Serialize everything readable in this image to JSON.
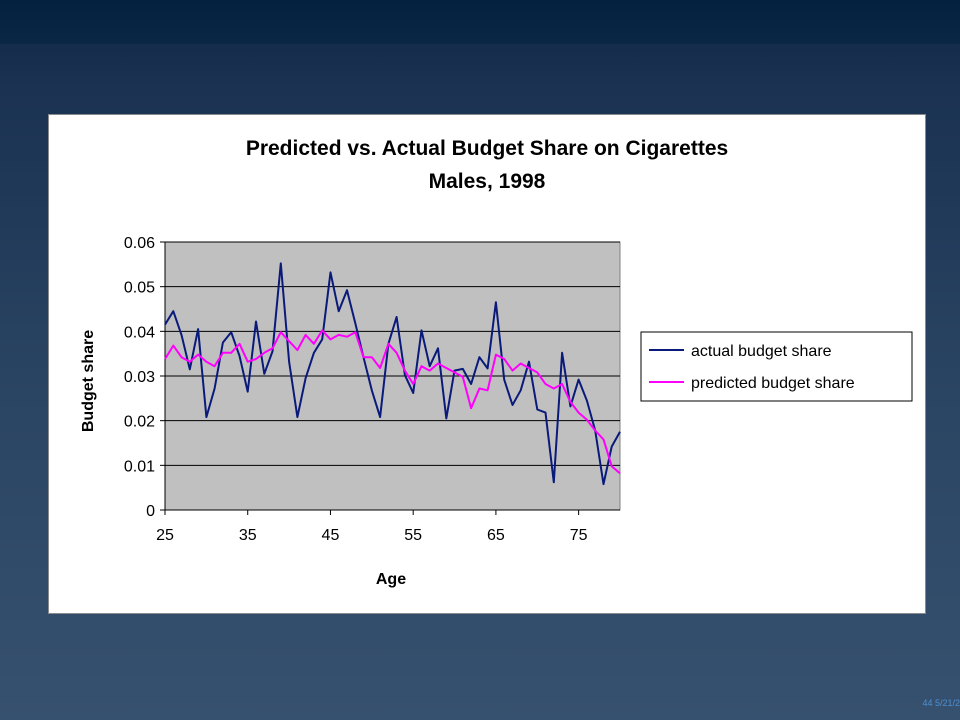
{
  "slide": {
    "footer": "44 5/21/2"
  },
  "colors": {
    "actual": "#0a1a7a",
    "predicted": "#ff00ff",
    "plot_bg": "#c0c0c0",
    "background": "#2a4563"
  },
  "chart_data": {
    "type": "line",
    "title": "Predicted vs. Actual Budget Share on Cigarettes",
    "subtitle": "Males, 1998",
    "xlabel": "Age",
    "ylabel": "Budget share",
    "xlim": [
      25,
      80
    ],
    "ylim": [
      0,
      0.06
    ],
    "xticks": [
      25,
      35,
      45,
      55,
      65,
      75
    ],
    "xtick_labels": [
      "25",
      "35",
      "45",
      "55",
      "65",
      "75"
    ],
    "yticks": [
      0,
      0.01,
      0.02,
      0.03,
      0.04,
      0.05,
      0.06
    ],
    "ytick_labels": [
      "0",
      "0.01",
      "0.02",
      "0.03",
      "0.04",
      "0.05",
      "0.06"
    ],
    "grid": true,
    "legend_position": "right",
    "x": [
      25,
      26,
      27,
      28,
      29,
      30,
      31,
      32,
      33,
      34,
      35,
      36,
      37,
      38,
      39,
      40,
      41,
      42,
      43,
      44,
      45,
      46,
      47,
      48,
      49,
      50,
      51,
      52,
      53,
      54,
      55,
      56,
      57,
      58,
      59,
      60,
      61,
      62,
      63,
      64,
      65,
      66,
      67,
      68,
      69,
      70,
      71,
      72,
      73,
      74,
      75,
      76,
      77,
      78,
      79,
      80
    ],
    "series": [
      {
        "name": "actual budget share",
        "color": "#0a1a7a",
        "values": [
          0.0415,
          0.0445,
          0.0392,
          0.0315,
          0.0405,
          0.0208,
          0.0272,
          0.0375,
          0.0398,
          0.0345,
          0.0265,
          0.0422,
          0.0305,
          0.0355,
          0.0552,
          0.0332,
          0.0208,
          0.0295,
          0.0352,
          0.0382,
          0.0532,
          0.0445,
          0.0492,
          0.0418,
          0.0342,
          0.0268,
          0.0208,
          0.0372,
          0.0432,
          0.0302,
          0.0262,
          0.0402,
          0.0322,
          0.0362,
          0.0205,
          0.0312,
          0.0316,
          0.0282,
          0.0342,
          0.0317,
          0.0465,
          0.0292,
          0.0235,
          0.0268,
          0.0332,
          0.0225,
          0.0218,
          0.0062,
          0.0352,
          0.0232,
          0.0292,
          0.0245,
          0.0178,
          0.0058,
          0.0142,
          0.0175
        ]
      },
      {
        "name": "predicted budget share",
        "color": "#ff00ff",
        "values": [
          0.0338,
          0.0368,
          0.0342,
          0.0332,
          0.0348,
          0.0332,
          0.0322,
          0.0352,
          0.0352,
          0.0372,
          0.0332,
          0.0338,
          0.0352,
          0.0362,
          0.0398,
          0.0378,
          0.0358,
          0.0392,
          0.0372,
          0.0402,
          0.0382,
          0.0392,
          0.0388,
          0.0398,
          0.0342,
          0.0342,
          0.0318,
          0.0372,
          0.0352,
          0.0312,
          0.0282,
          0.0322,
          0.0312,
          0.0328,
          0.0318,
          0.0308,
          0.0298,
          0.0228,
          0.0272,
          0.0268,
          0.0348,
          0.0338,
          0.0312,
          0.0328,
          0.0318,
          0.0308,
          0.0282,
          0.0272,
          0.0282,
          0.0242,
          0.0218,
          0.0202,
          0.0178,
          0.0158,
          0.0098,
          0.0082
        ]
      }
    ]
  }
}
